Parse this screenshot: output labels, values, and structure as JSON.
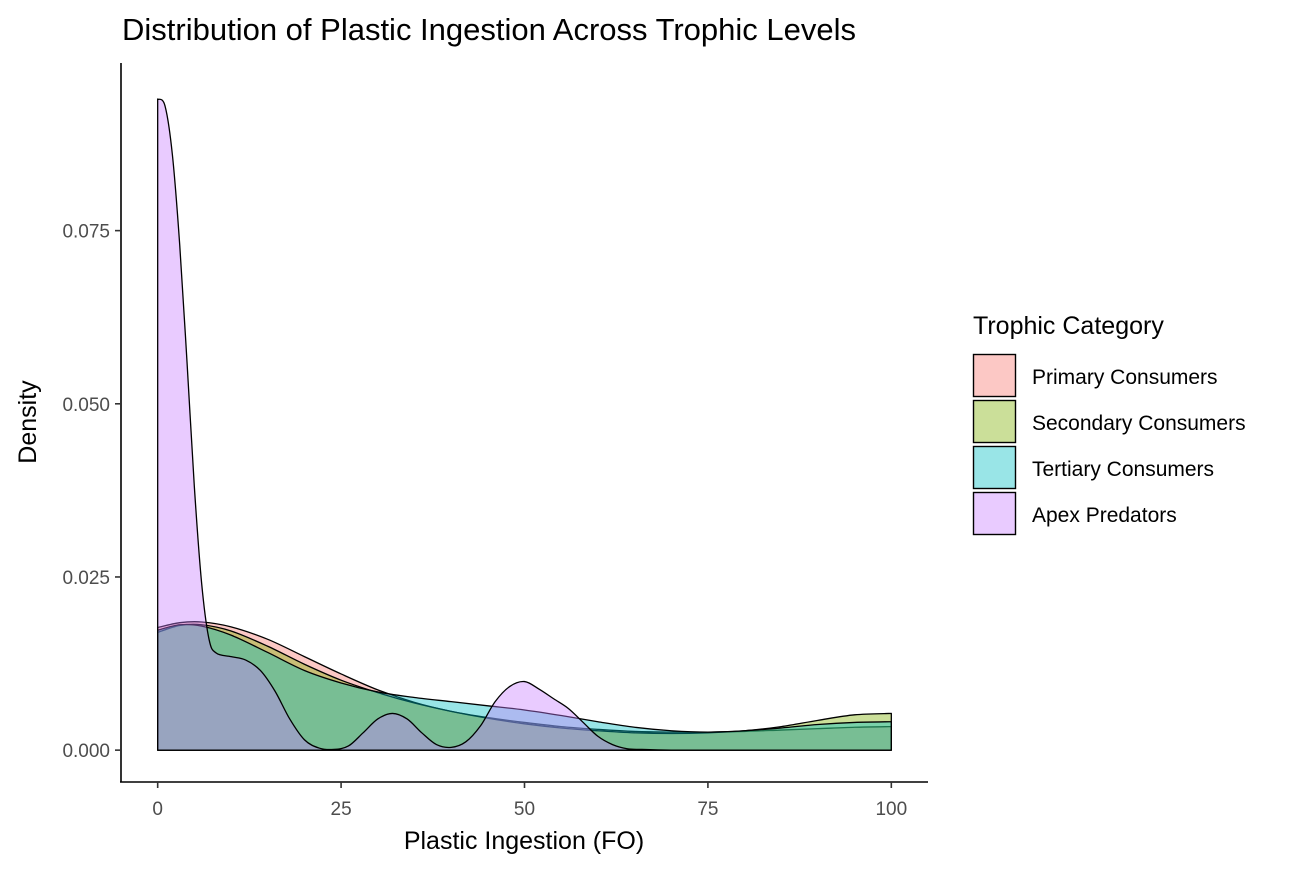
{
  "chart_data": {
    "type": "area",
    "title": "Distribution of Plastic Ingestion Across Trophic Levels",
    "xlabel": "Plastic Ingestion (FO)",
    "ylabel": "Density",
    "xlim": [
      -5,
      105
    ],
    "ylim": [
      -0.0046,
      0.0992
    ],
    "x_ticks": [
      0,
      25,
      50,
      75,
      100
    ],
    "x_tick_labels": [
      "0",
      "25",
      "50",
      "75",
      "100"
    ],
    "y_ticks": [
      0.0,
      0.025,
      0.05,
      0.075
    ],
    "y_tick_labels": [
      "0.000",
      "0.025",
      "0.050",
      "0.075"
    ],
    "grid": false,
    "legend": {
      "title": "Trophic Category",
      "position": "right"
    },
    "fill_opacity": 0.4,
    "series": [
      {
        "name": "Primary Consumers",
        "color": "#F8766D",
        "x": [
          0,
          3,
          6,
          10,
          15,
          20,
          25,
          30,
          35,
          40,
          45,
          50,
          55,
          60,
          65,
          70,
          75,
          80,
          85,
          90,
          95,
          100
        ],
        "y": [
          0.0177,
          0.0184,
          0.0185,
          0.0178,
          0.016,
          0.0135,
          0.011,
          0.0087,
          0.0069,
          0.0056,
          0.0047,
          0.004,
          0.0034,
          0.003,
          0.0027,
          0.0026,
          0.0026,
          0.0027,
          0.0029,
          0.0031,
          0.0033,
          0.0034
        ]
      },
      {
        "name": "Secondary Consumers",
        "color": "#7CAE00",
        "x": [
          0,
          3,
          6,
          10,
          15,
          20,
          25,
          30,
          35,
          40,
          45,
          50,
          55,
          60,
          65,
          70,
          75,
          80,
          85,
          90,
          95,
          100
        ],
        "y": [
          0.017,
          0.018,
          0.0181,
          0.0172,
          0.015,
          0.0124,
          0.0101,
          0.0083,
          0.0068,
          0.0056,
          0.0046,
          0.0038,
          0.0032,
          0.0028,
          0.0025,
          0.0024,
          0.0025,
          0.0028,
          0.0034,
          0.0043,
          0.0051,
          0.0053
        ]
      },
      {
        "name": "Tertiary Consumers",
        "color": "#00BFC4",
        "x": [
          0,
          3,
          6,
          10,
          15,
          20,
          25,
          30,
          35,
          40,
          45,
          50,
          55,
          60,
          65,
          70,
          75,
          80,
          85,
          90,
          95,
          100
        ],
        "y": [
          0.0173,
          0.0181,
          0.0179,
          0.0166,
          0.0141,
          0.0115,
          0.0097,
          0.0084,
          0.0076,
          0.007,
          0.0064,
          0.0058,
          0.005,
          0.0041,
          0.0033,
          0.0028,
          0.0026,
          0.0028,
          0.0032,
          0.0037,
          0.004,
          0.0041
        ]
      },
      {
        "name": "Apex Predators",
        "color": "#C77CFF",
        "x": [
          0,
          1,
          2,
          3,
          4,
          5,
          6,
          7,
          8,
          10,
          12,
          14,
          16,
          18,
          20,
          22,
          24,
          26,
          28,
          30,
          32,
          34,
          36,
          38,
          40,
          42,
          44,
          46,
          48,
          50,
          52,
          54,
          56,
          58,
          60,
          62,
          64,
          66,
          70,
          75,
          80,
          85,
          90,
          95,
          100
        ],
        "y": [
          0.094,
          0.093,
          0.086,
          0.073,
          0.056,
          0.038,
          0.024,
          0.016,
          0.014,
          0.0135,
          0.013,
          0.0115,
          0.0085,
          0.0045,
          0.0015,
          0.0003,
          0.0001,
          0.0006,
          0.0025,
          0.0045,
          0.0053,
          0.0045,
          0.0025,
          0.0008,
          0.0004,
          0.0012,
          0.0035,
          0.007,
          0.0092,
          0.0099,
          0.0088,
          0.0074,
          0.006,
          0.004,
          0.002,
          0.0008,
          0.0002,
          0.0001,
          0.0,
          0.0,
          0.0,
          0.0,
          0.0,
          0.0,
          0.0
        ]
      }
    ]
  }
}
